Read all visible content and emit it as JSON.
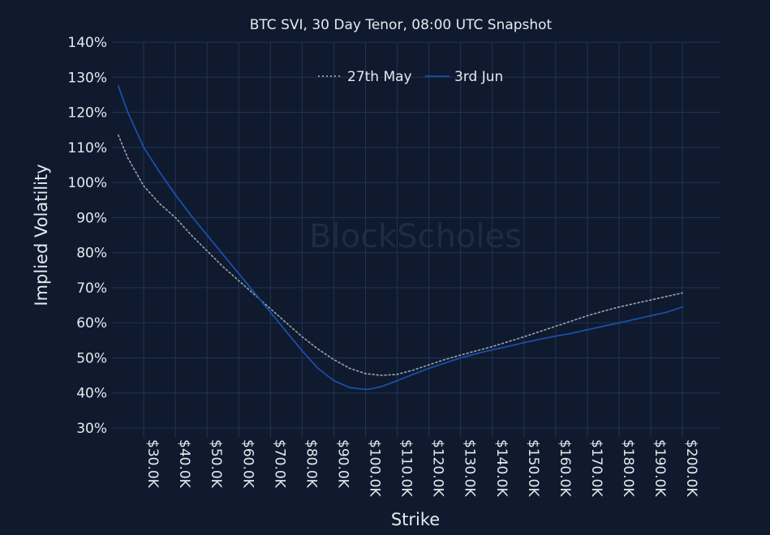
{
  "watermark": "BlockScholes",
  "chart_data": {
    "type": "line",
    "title": "BTC SVI, 30 Day Tenor, 08:00 UTC Snapshot",
    "xlabel": "Strike",
    "ylabel": "Implied Volatility",
    "x_ticks": [
      30000,
      40000,
      50000,
      60000,
      70000,
      80000,
      90000,
      100000,
      110000,
      120000,
      130000,
      140000,
      150000,
      160000,
      170000,
      180000,
      190000,
      200000
    ],
    "x_tick_labels": [
      "$30.0K",
      "$40.0K",
      "$50.0K",
      "$60.0K",
      "$70.0K",
      "$80.0K",
      "$90.0K",
      "$100.0K",
      "$110.0K",
      "$120.0K",
      "$130.0K",
      "$140.0K",
      "$150.0K",
      "$160.0K",
      "$170.0K",
      "$180.0K",
      "$190.0K",
      "$200.0K"
    ],
    "y_ticks": [
      30,
      40,
      50,
      60,
      70,
      80,
      90,
      100,
      110,
      120,
      130,
      140
    ],
    "y_tick_labels": [
      "30%",
      "40%",
      "50%",
      "60%",
      "70%",
      "80%",
      "90%",
      "100%",
      "110%",
      "120%",
      "130%",
      "140%"
    ],
    "xlim": [
      20000,
      212000
    ],
    "ylim": [
      30,
      140
    ],
    "grid": true,
    "legend_position": "top-center",
    "series": [
      {
        "name": "27th May",
        "style": "dotted",
        "color": "#9aa3b5",
        "x": [
          22000,
          25000,
          30000,
          35000,
          40000,
          45000,
          50000,
          55000,
          60000,
          65000,
          70000,
          75000,
          80000,
          85000,
          90000,
          95000,
          100000,
          105000,
          110000,
          115000,
          120000,
          125000,
          130000,
          135000,
          140000,
          145000,
          150000,
          155000,
          160000,
          165000,
          170000,
          175000,
          180000,
          185000,
          190000,
          195000,
          200000
        ],
        "y": [
          113.5,
          107.0,
          99.0,
          94.0,
          90.0,
          85.0,
          80.5,
          76.0,
          72.0,
          68.0,
          64.0,
          60.0,
          56.0,
          52.5,
          49.5,
          47.0,
          45.5,
          45.0,
          45.3,
          46.5,
          48.0,
          49.5,
          50.8,
          52.0,
          53.2,
          54.6,
          56.0,
          57.5,
          59.0,
          60.5,
          62.0,
          63.3,
          64.5,
          65.5,
          66.5,
          67.5,
          68.5
        ]
      },
      {
        "name": "3rd Jun",
        "style": "solid",
        "color": "#1a4fa8",
        "x": [
          22000,
          25000,
          30000,
          35000,
          40000,
          45000,
          50000,
          55000,
          60000,
          65000,
          70000,
          75000,
          80000,
          85000,
          90000,
          95000,
          100000,
          102000,
          105000,
          110000,
          115000,
          120000,
          125000,
          130000,
          135000,
          140000,
          145000,
          150000,
          155000,
          160000,
          165000,
          170000,
          175000,
          180000,
          185000,
          190000,
          195000,
          200000
        ],
        "y": [
          127.5,
          120.0,
          110.0,
          103.0,
          96.5,
          90.5,
          85.0,
          79.5,
          74.0,
          68.5,
          63.0,
          57.5,
          52.0,
          47.0,
          43.5,
          41.5,
          41.0,
          41.2,
          41.8,
          43.5,
          45.3,
          47.0,
          48.5,
          50.0,
          51.2,
          52.3,
          53.3,
          54.3,
          55.3,
          56.2,
          57.0,
          58.0,
          59.0,
          60.0,
          61.0,
          62.0,
          63.0,
          64.5
        ]
      }
    ]
  }
}
